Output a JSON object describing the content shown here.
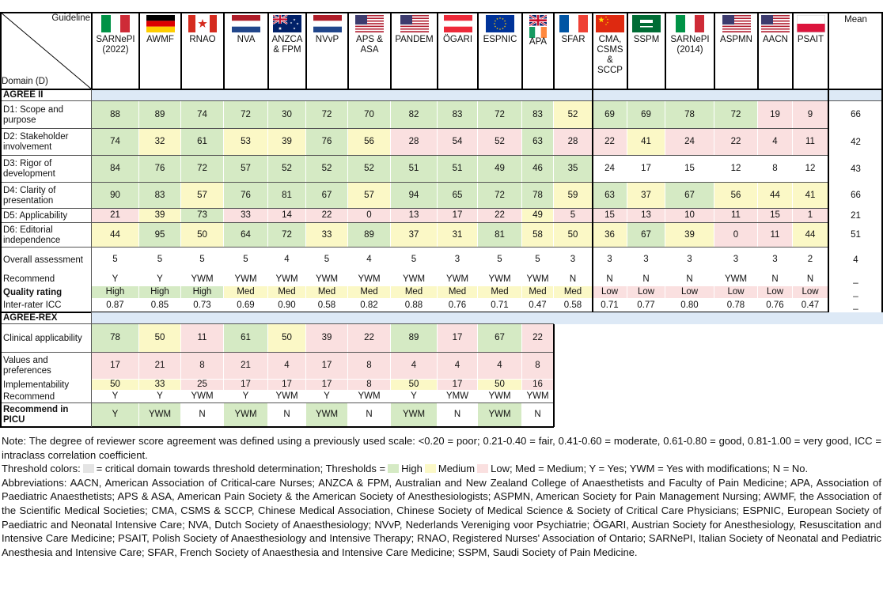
{
  "corner": {
    "top": "Guideline",
    "bottom": "Domain (D)"
  },
  "guidelines": [
    "SARNePI (2022)",
    "AWMF",
    "RNAO",
    "NVA",
    "ANZCA & FPM",
    "NVvP",
    "APS & ASA",
    "PANDEM",
    "ÖGARI",
    "ESPNIC",
    "APA",
    "SFAR",
    "CMA, CSMS & SCCP",
    "SSPM",
    "SARNePI (2014)",
    "ASPMN",
    "AACN",
    "PSAIT"
  ],
  "mean_header": "Mean",
  "palette": {
    "High": "#d5eac4",
    "Medium": "#fbf8c6",
    "Low": "#fae0e0"
  },
  "critical_color": "#e4e4e4",
  "section_color": "#dde9f6",
  "sections": [
    {
      "title": "AGREE II",
      "rows": [
        {
          "label": "D1: Scope and purpose",
          "values": [
            88,
            89,
            74,
            72,
            30,
            72,
            70,
            82,
            83,
            72,
            83,
            52,
            69,
            69,
            78,
            72,
            19,
            9
          ],
          "mean": 66,
          "levels": [
            "High",
            "High",
            "High",
            "High",
            "High",
            "High",
            "High",
            "High",
            "High",
            "High",
            "High",
            "Medium",
            "High",
            "High",
            "High",
            "High",
            "Low",
            "Low"
          ]
        },
        {
          "label": "D2: Stakeholder involvement",
          "values": [
            74,
            32,
            61,
            53,
            39,
            76,
            56,
            28,
            54,
            52,
            63,
            28,
            22,
            41,
            24,
            22,
            4,
            11
          ],
          "mean": 42,
          "levels": [
            "High",
            "Medium",
            "High",
            "Medium",
            "Medium",
            "High",
            "Medium",
            "Low",
            "Low",
            "Low",
            "High",
            "Low",
            "Low",
            "Medium",
            "Low",
            "Low",
            "Low",
            "Low"
          ]
        },
        {
          "label": "D3: Rigor of development",
          "values": [
            84,
            76,
            72,
            57,
            52,
            52,
            52,
            51,
            51,
            49,
            46,
            35,
            24,
            17,
            15,
            12,
            8,
            12
          ],
          "mean": 43,
          "levels": [
            "High",
            "High",
            "High",
            "High",
            "High",
            "High",
            "High",
            "High",
            "High",
            "High",
            "High",
            "High",
            null,
            null,
            null,
            null,
            null,
            null
          ]
        },
        {
          "label": "D4: Clarity of presentation",
          "values": [
            90,
            83,
            57,
            76,
            81,
            67,
            57,
            94,
            65,
            72,
            78,
            59,
            63,
            37,
            67,
            56,
            44,
            41
          ],
          "mean": 66,
          "levels": [
            "High",
            "High",
            "Medium",
            "High",
            "High",
            "High",
            "Medium",
            "High",
            "High",
            "High",
            "High",
            "Medium",
            "High",
            "Medium",
            "High",
            "Medium",
            "Medium",
            "Medium"
          ]
        },
        {
          "label": "D5: Applicability",
          "values": [
            21,
            39,
            73,
            33,
            14,
            22,
            0,
            13,
            17,
            22,
            49,
            5,
            15,
            13,
            10,
            11,
            15,
            1
          ],
          "mean": 21,
          "levels": [
            "Low",
            "Medium",
            "High",
            "Low",
            "Low",
            "Low",
            "Low",
            "Low",
            "Low",
            "Low",
            "Medium",
            "Low",
            "Low",
            "Low",
            "Low",
            "Low",
            "Low",
            "Low"
          ]
        },
        {
          "label": "D6: Editorial independence",
          "values": [
            44,
            95,
            50,
            64,
            72,
            33,
            89,
            37,
            31,
            81,
            58,
            50,
            36,
            67,
            39,
            0,
            11,
            44
          ],
          "mean": 51,
          "levels": [
            "Medium",
            "High",
            "Medium",
            "High",
            "High",
            "Medium",
            "High",
            "Medium",
            "Medium",
            "High",
            "Medium",
            "Medium",
            "Medium",
            "High",
            "Medium",
            "Low",
            "Low",
            "Medium"
          ]
        },
        {
          "label": "Overall assessment",
          "values": [
            5,
            5,
            5,
            5,
            4,
            5,
            4,
            5,
            3,
            5,
            5,
            3,
            3,
            3,
            3,
            3,
            3,
            2
          ],
          "mean": 4
        },
        {
          "label": "Recommend",
          "values": [
            "Y",
            "Y",
            "YWM",
            "YWM",
            "YWM",
            "YWM",
            "YWM",
            "YWM",
            "YWM",
            "YWM",
            "YWM",
            "N",
            "N",
            "N",
            "N",
            "YWM",
            "N",
            "N"
          ],
          "mean": "_"
        },
        {
          "label": "Quality rating",
          "bold": true,
          "values": [
            "High",
            "High",
            "High",
            "Med",
            "Med",
            "Med",
            "Med",
            "Med",
            "Med",
            "Med",
            "Med",
            "Med",
            "Low",
            "Low",
            "Low",
            "Low",
            "Low",
            "Low"
          ],
          "mean": "_",
          "levels": [
            "High",
            "High",
            "High",
            "Medium",
            "Medium",
            "Medium",
            "Medium",
            "Medium",
            "Medium",
            "Medium",
            "Medium",
            "Medium",
            "Low",
            "Low",
            "Low",
            "Low",
            "Low",
            "Low"
          ]
        },
        {
          "label": "Inter-rater ICC",
          "values": [
            "0.87",
            "0.85",
            "0.73",
            "0.69",
            "0.90",
            "0.58",
            "0.82",
            "0.88",
            "0.76",
            "0.71",
            "0.47",
            "0.58",
            "0.71",
            "0.77",
            "0.80",
            "0.78",
            "0.76",
            "0.47"
          ],
          "mean": "_"
        }
      ]
    },
    {
      "title": "AGREE-REX",
      "rows": [
        {
          "label": "Clinical applicability",
          "values": [
            78,
            50,
            11,
            61,
            50,
            39,
            22,
            89,
            17,
            67,
            22
          ],
          "levels": [
            "High",
            "Medium",
            "Low",
            "High",
            "Medium",
            "Low",
            "Low",
            "High",
            "Low",
            "High",
            "Low"
          ]
        },
        {
          "label": "Values and preferences",
          "values": [
            17,
            21,
            8,
            21,
            4,
            17,
            8,
            4,
            4,
            4,
            8
          ],
          "levels": [
            "Low",
            "Low",
            "Low",
            "Low",
            "Low",
            "Low",
            "Low",
            "Low",
            "Low",
            "Low",
            "Low"
          ]
        },
        {
          "label": "Implementability",
          "values": [
            50,
            33,
            25,
            17,
            17,
            17,
            8,
            50,
            17,
            50,
            16
          ],
          "levels": [
            "Medium",
            "Medium",
            "Low",
            "Low",
            "Low",
            "Low",
            "Low",
            "Medium",
            "Low",
            "Medium",
            "Low"
          ]
        },
        {
          "label": "Recommend",
          "values": [
            "Y",
            "Y",
            "YWM",
            "Y",
            "YWM",
            "Y",
            "YWM",
            "Y",
            "YMW",
            "YWM",
            "YWM"
          ]
        },
        {
          "label": "Recommend in PICU",
          "bold": true,
          "values": [
            "Y",
            "YWM",
            "N",
            "YWM",
            "N",
            "YWM",
            "N",
            "YWM",
            "N",
            "YWM",
            "N"
          ],
          "levels": [
            "High",
            "High",
            null,
            "High",
            null,
            "High",
            null,
            "High",
            null,
            "High",
            null
          ]
        }
      ]
    }
  ],
  "notes": {
    "note": "Note: The degree of reviewer score agreement was defined using a previously used scale: <0.20 = poor; 0.21-0.40 = fair, 0.41-0.60 = moderate, 0.61-0.80 = good, 0.81-1.00 = very good, ICC = intraclass correlation coefficient.",
    "threshold": {
      "lead": "Threshold colors:",
      "critical": "= critical domain towards threshold determination; Thresholds =",
      "high": "High",
      "medium": "Medium",
      "low": "Low; Med = Medium; Y = Yes; YWM = Yes with modifications; N = No."
    },
    "abbreviations": "Abbreviations: AACN, American Association of Critical-care Nurses; ANZCA & FPM, Australian and New Zealand College of Anaesthetists and Faculty of Pain Medicine; APA, Association of Paediatric Anaesthetists; APS & ASA, American Pain Society & the American Society of Anesthesiologists; ASPMN, American Society for Pain Management Nursing; AWMF, the Association of the Scientific Medical Societies; CMA, CSMS & SCCP, Chinese Medical Association, Chinese Society of Medical Science & Society of Critical Care Physicians; ESPNIC, European Society of Paediatric and Neonatal Intensive Care; NVA, Dutch Society of Anaesthesiology; NVvP, Nederlands Vereniging voor Psychiatrie; ÖGARI, Austrian Society for Anesthesiology, Resuscitation and Intensive Care Medicine; PSAIT, Polish Society of Anaesthesiology and Intensive Therapy; RNAO, Registered Nurses' Association of Ontario; SARNePI, Italian Society of Neonatal and Pediatric Anesthesia and Intensive Care; SFAR, French Society of Anaesthesia and Intensive Care Medicine; SSPM, Saudi Society of Pain Medicine."
  }
}
